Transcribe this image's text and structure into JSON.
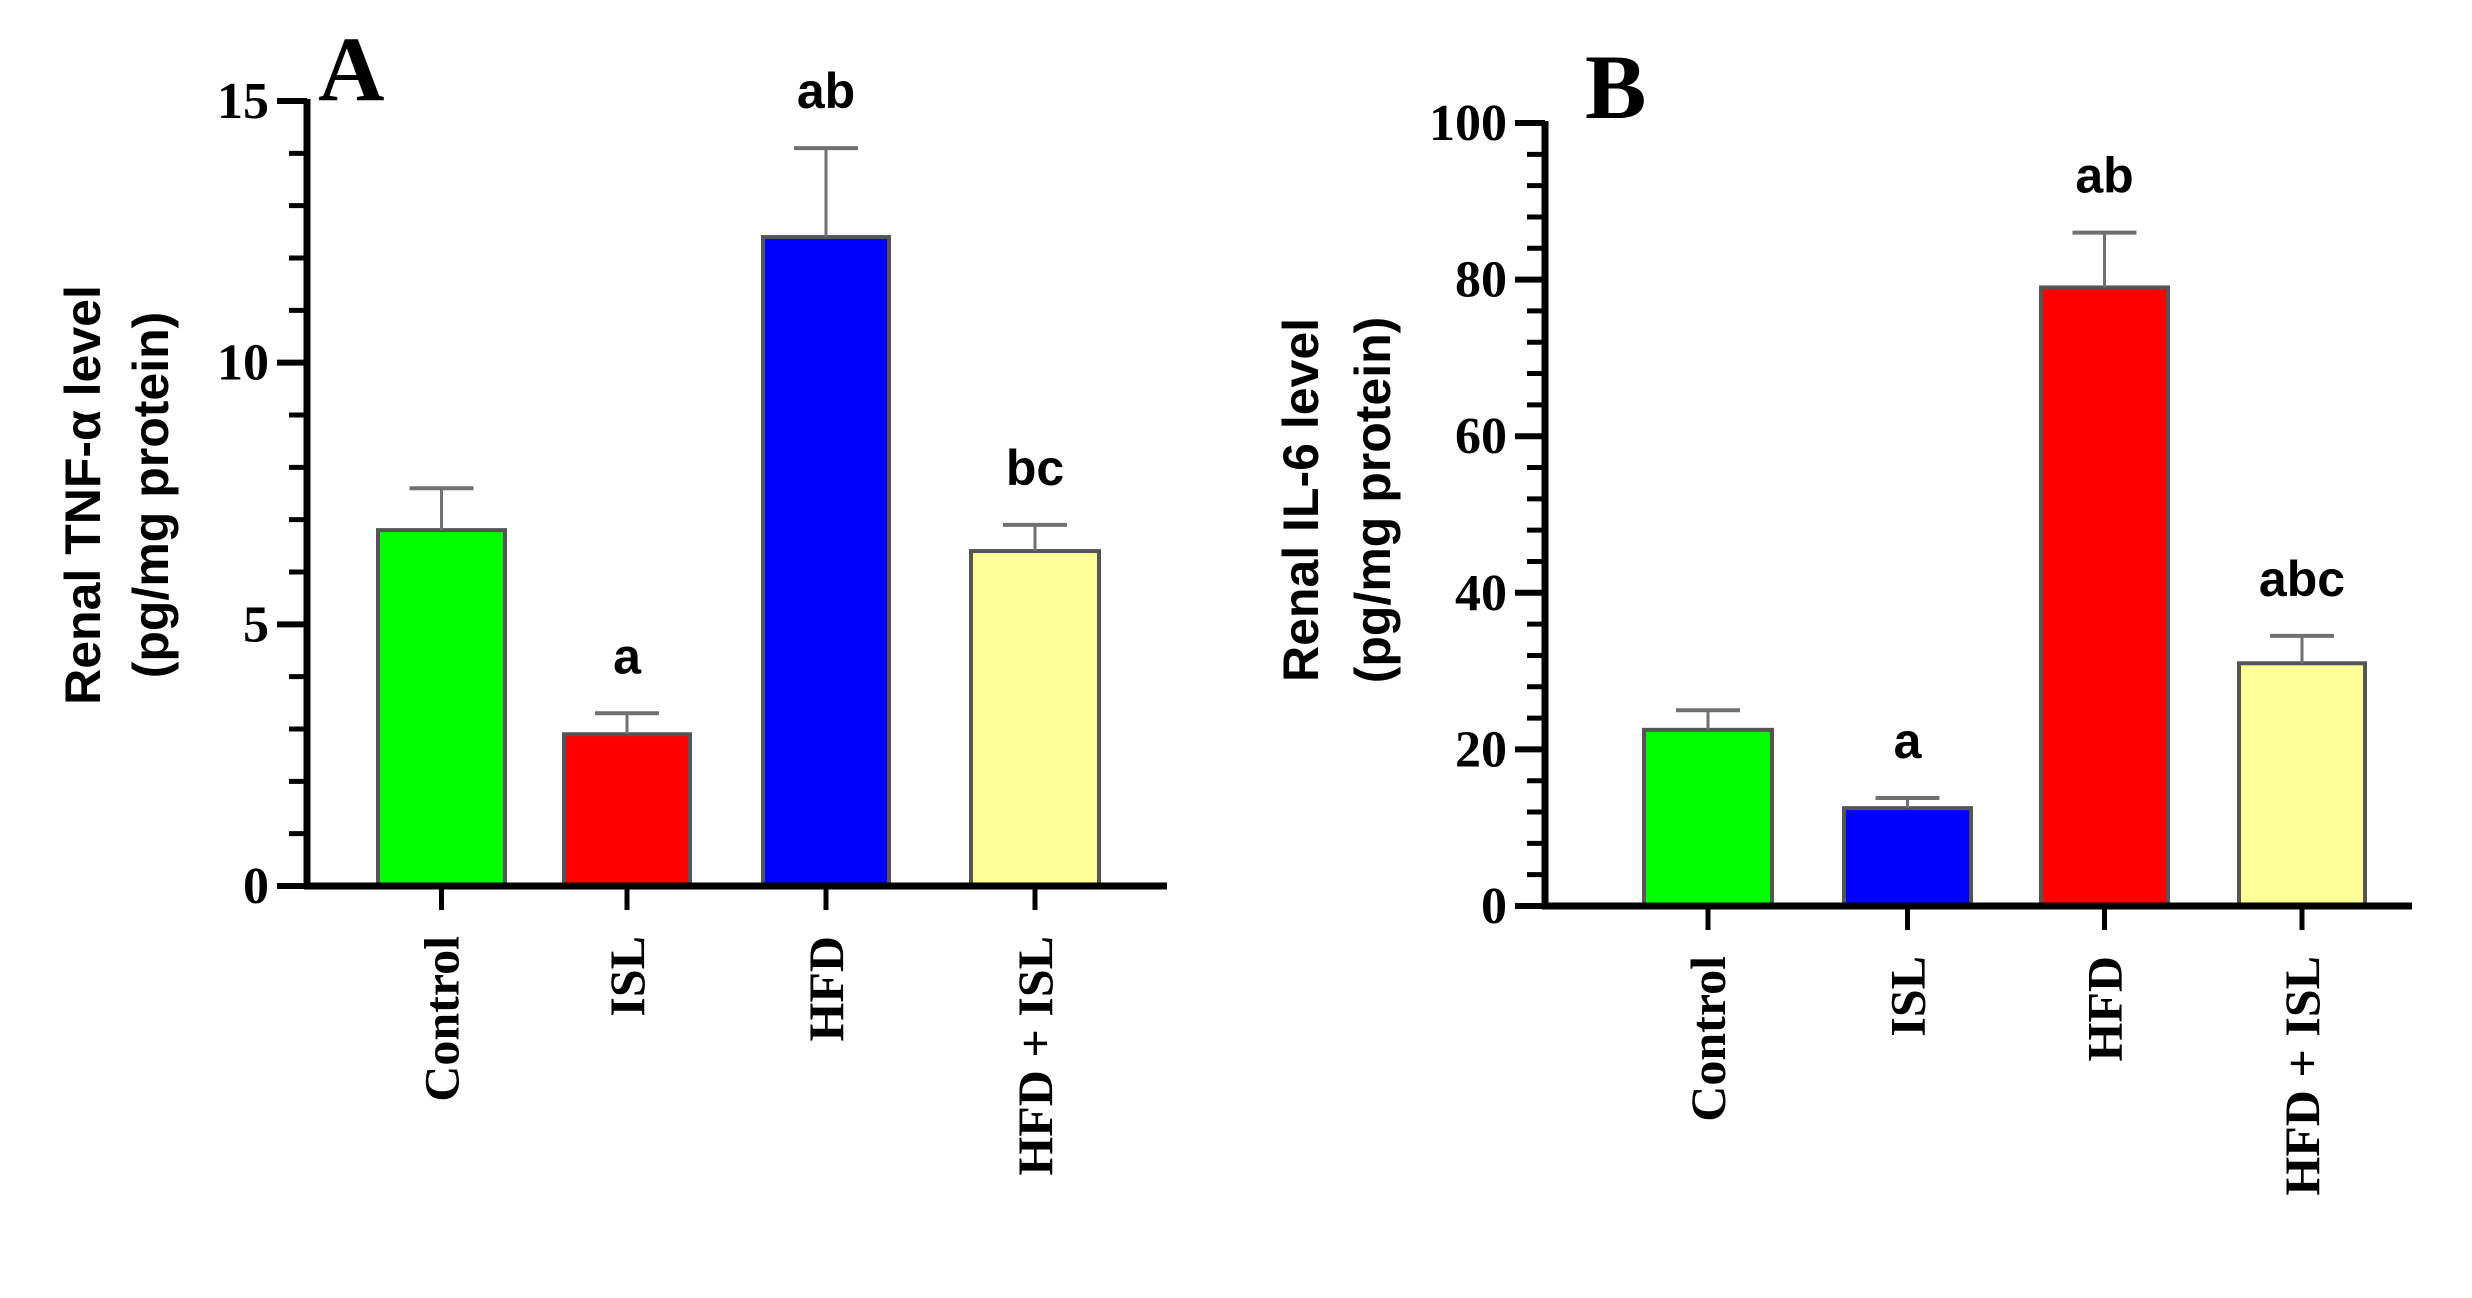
{
  "chart_data": [
    {
      "type": "bar",
      "panel_label": "A",
      "title": "",
      "xlabel": "",
      "ylabel_line1": "Renal TNF-α level",
      "ylabel_line2": "(pg/mg protein)",
      "categories": [
        "Control",
        "ISL",
        "HFD",
        "HFD + ISL"
      ],
      "values": [
        6.8,
        2.9,
        12.4,
        6.4
      ],
      "error_upper": [
        0.8,
        0.4,
        1.7,
        0.5
      ],
      "significance": [
        "",
        "a",
        "ab",
        "bc"
      ],
      "colors": [
        "#00ff00",
        "#ff0000",
        "#0000ff",
        "#ffff99"
      ],
      "ylim": [
        0,
        15
      ],
      "yticks": [
        0,
        5,
        10,
        15
      ],
      "minor_tick_step": 1,
      "grid": false,
      "legend": "none"
    },
    {
      "type": "bar",
      "panel_label": "B",
      "title": "",
      "xlabel": "",
      "ylabel_line1": "Renal IL-6 level",
      "ylabel_line2": "(pg/mg protein)",
      "categories": [
        "Control",
        "ISL",
        "HFD",
        "HFD + ISL"
      ],
      "values": [
        22.5,
        12.5,
        79,
        31
      ],
      "error_upper": [
        2.5,
        1.3,
        7,
        3.5
      ],
      "significance": [
        "",
        "a",
        "ab",
        "abc"
      ],
      "colors": [
        "#00ff00",
        "#0000ff",
        "#ff0000",
        "#ffff99"
      ],
      "ylim": [
        0,
        100
      ],
      "yticks": [
        0,
        20,
        40,
        60,
        80,
        100
      ],
      "minor_tick_step": 4,
      "grid": false,
      "legend": "none"
    }
  ]
}
